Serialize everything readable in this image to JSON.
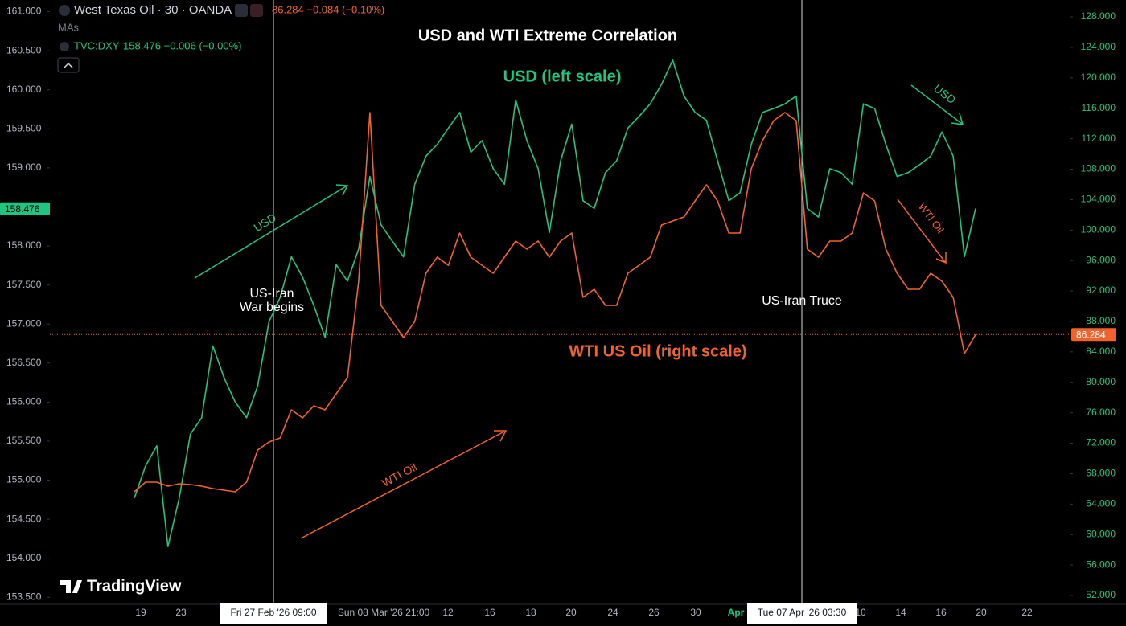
{
  "chart_data": {
    "type": "line",
    "title": "USD and WTI Extreme Correlation",
    "header": {
      "symbol": "West Texas Oil · 30 · OANDA",
      "quote": "86.284 −0.084 (−0.10%)",
      "mas": "MAs",
      "compare_symbol": "TVC:DXY",
      "compare_quote": "158.476 −0.006 (−0.00%)"
    },
    "watermark": "TradingView",
    "series": [
      {
        "name": "USD (left scale)",
        "color": "#1fc67f",
        "axis": "y",
        "values": [
          154.77,
          155.18,
          155.44,
          154.15,
          154.77,
          155.59,
          155.8,
          156.72,
          156.31,
          156.0,
          155.8,
          156.21,
          157.03,
          157.34,
          157.86,
          157.6,
          157.24,
          156.83,
          157.76,
          157.55,
          157.96,
          158.89,
          158.27,
          158.06,
          157.86,
          158.79,
          159.15,
          159.3,
          159.51,
          159.71,
          159.2,
          159.35,
          158.99,
          158.79,
          159.87,
          159.35,
          158.99,
          158.17,
          159.09,
          159.56,
          158.58,
          158.48,
          158.94,
          159.09,
          159.51,
          159.66,
          159.82,
          160.07,
          160.38,
          159.92,
          159.71,
          159.61,
          159.09,
          158.58,
          158.68,
          159.3,
          159.71,
          159.76,
          159.82,
          159.92,
          158.48,
          158.37,
          158.99,
          158.94,
          158.79,
          159.82,
          159.76,
          159.3,
          158.89,
          158.94,
          159.04,
          159.15,
          159.46,
          159.15,
          157.86,
          158.48
        ]
      },
      {
        "name": "WTI US Oil (right scale)",
        "color": "#f2632b",
        "axis": "y2",
        "values": [
          65.62,
          66.89,
          66.89,
          66.36,
          66.67,
          66.57,
          66.36,
          66.04,
          65.83,
          65.62,
          66.89,
          71.11,
          72.16,
          72.69,
          76.39,
          75.33,
          76.91,
          76.39,
          78.5,
          80.61,
          93.27,
          115.44,
          90.11,
          88.0,
          85.89,
          88.0,
          94.33,
          96.44,
          95.38,
          99.61,
          96.44,
          95.38,
          94.33,
          96.44,
          98.55,
          97.5,
          98.55,
          96.44,
          98.55,
          99.61,
          91.16,
          92.22,
          90.11,
          90.11,
          94.33,
          95.38,
          96.44,
          100.66,
          101.19,
          101.72,
          103.83,
          105.94,
          103.83,
          99.61,
          99.61,
          108.05,
          111.74,
          114.38,
          115.44,
          114.38,
          97.5,
          96.44,
          98.55,
          98.55,
          99.61,
          104.88,
          103.83,
          97.5,
          94.33,
          92.22,
          92.22,
          94.33,
          93.27,
          91.16,
          83.77,
          86.28
        ]
      }
    ],
    "last_prices": [
      158.476,
      86.284
    ],
    "ylim": [
      153.41,
      161.15
    ],
    "yticks": [
      {
        "value": 153.5,
        "label": "153.500"
      },
      {
        "value": 154,
        "label": "154.000"
      },
      {
        "value": 154.5,
        "label": "154.500"
      },
      {
        "value": 155,
        "label": "155.000"
      },
      {
        "value": 155.5,
        "label": "155.500"
      },
      {
        "value": 156,
        "label": "156.000"
      },
      {
        "value": 156.5,
        "label": "156.500"
      },
      {
        "value": 157,
        "label": "157.000"
      },
      {
        "value": 157.5,
        "label": "157.500"
      },
      {
        "value": 158,
        "label": "158.000"
      },
      {
        "value": 158.5,
        "label": "158.500"
      },
      {
        "value": 159,
        "label": "159.000"
      },
      {
        "value": 159.5,
        "label": "159.500"
      },
      {
        "value": 160,
        "label": "160.000"
      },
      {
        "value": 160.5,
        "label": "160.500"
      },
      {
        "value": 161,
        "label": "161.000"
      }
    ],
    "y2lim": [
      50.84,
      130.22
    ],
    "y2ticks": [
      {
        "value": 52,
        "label": "52.000"
      },
      {
        "value": 56,
        "label": "56.000"
      },
      {
        "value": 60,
        "label": "60.000"
      },
      {
        "value": 64,
        "label": "64.000"
      },
      {
        "value": 68,
        "label": "68.000"
      },
      {
        "value": 72,
        "label": "72.000"
      },
      {
        "value": 76,
        "label": "76.000"
      },
      {
        "value": 80,
        "label": "80.000"
      },
      {
        "value": 84,
        "label": "84.000"
      },
      {
        "value": 88,
        "label": "88.000"
      },
      {
        "value": 92,
        "label": "92.000"
      },
      {
        "value": 96,
        "label": "96.000"
      },
      {
        "value": 100,
        "label": "100.000"
      },
      {
        "value": 104,
        "label": "104.000"
      },
      {
        "value": 108,
        "label": "108.000"
      },
      {
        "value": 112,
        "label": "112.000"
      },
      {
        "value": 116,
        "label": "116.000"
      },
      {
        "value": 120,
        "label": "120.000"
      },
      {
        "value": 124,
        "label": "124.000"
      },
      {
        "value": 128,
        "label": "128.000"
      }
    ],
    "x_labels": [
      "19",
      "23",
      "Sun 08 Mar '26  21:00",
      "12",
      "16",
      "18",
      "20",
      "24",
      "26",
      "30",
      "Apr",
      "10",
      "14",
      "16",
      "20",
      "22"
    ],
    "event_labels": [
      "Fri 27 Feb '26  09:00",
      "Tue 07 Apr '26  03:30"
    ],
    "annotations": {
      "war": [
        "US-Iran",
        "War begins"
      ],
      "truce": "US-Iran Truce",
      "usd_up": "USD",
      "wti_up": "WTI Oil",
      "usd_down": "USD",
      "wti_down": "WTI Oil"
    }
  }
}
